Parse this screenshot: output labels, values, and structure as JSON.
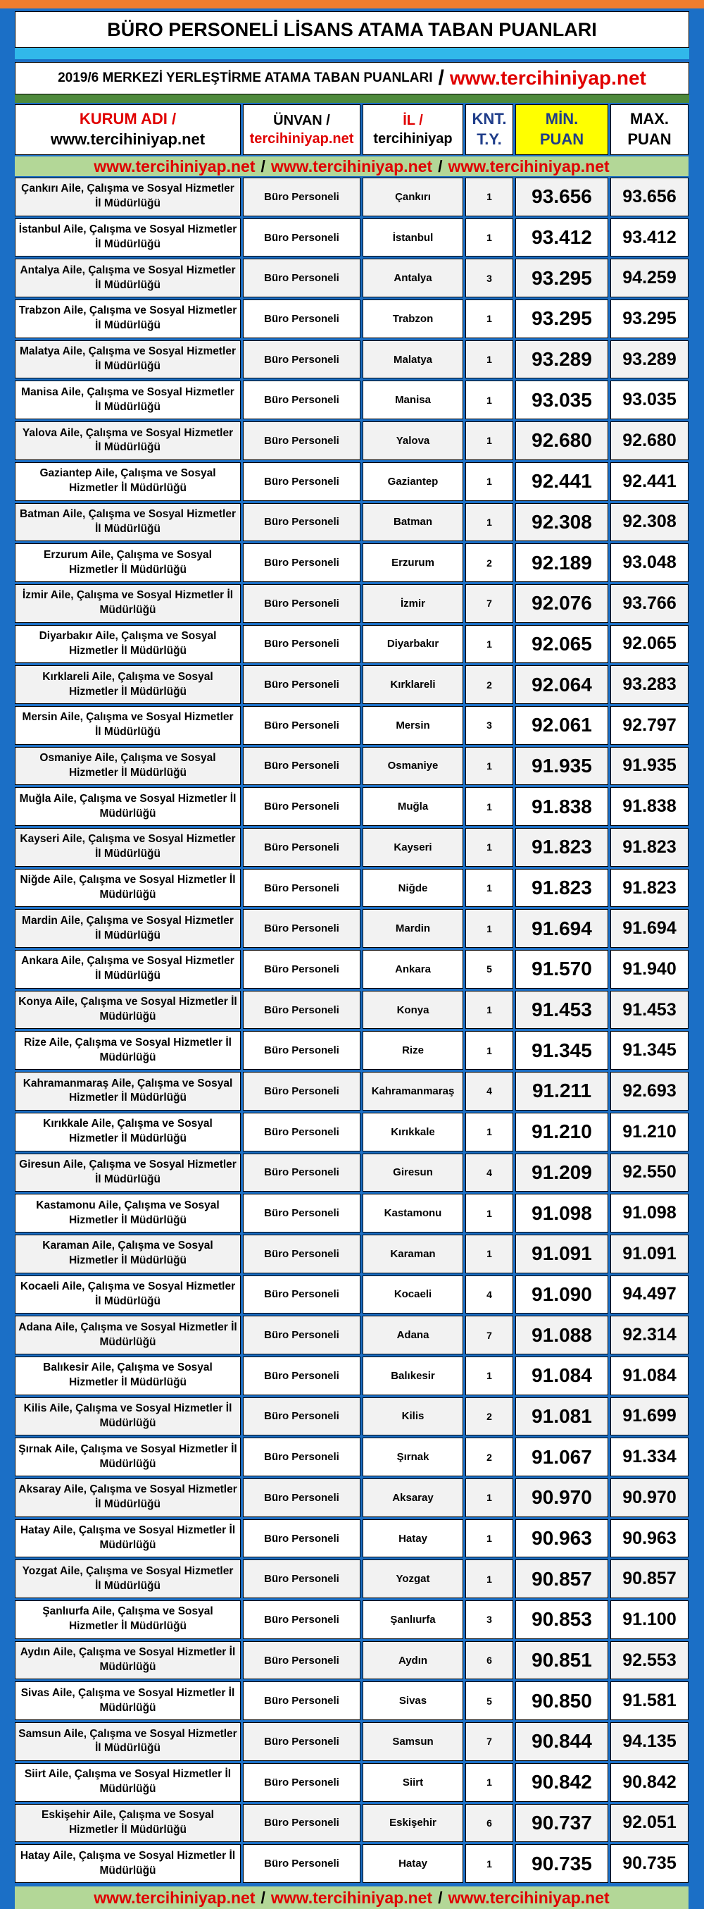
{
  "header": {
    "title": "BÜRO PERSONELİ LİSANS ATAMA TABAN PUANLARI",
    "subtitle": "2019/6 MERKEZİ YERLEŞTİRME ATAMA TABAN PUANLARI",
    "subtitle_sep": "/",
    "subtitle_site": "www.tercihiniyap.net"
  },
  "table": {
    "columns": [
      [
        "KURUM ADI /",
        "www.tercihiniyap.net"
      ],
      [
        "ÜNVAN /",
        "tercihiniyap.net"
      ],
      [
        "İL /",
        "tercihiniyap"
      ],
      [
        "KNT.",
        "T.Y."
      ],
      [
        "MİN.",
        "PUAN"
      ],
      [
        "MAX.",
        "PUAN"
      ]
    ],
    "banner": [
      "www.tercihiniyap.net",
      "/",
      "www.tercihiniyap.net",
      "/",
      "www.tercihiniyap.net"
    ],
    "rows": [
      [
        "Çankırı Aile, Çalışma ve Sosyal Hizmetler İl Müdürlüğü",
        "Büro Personeli",
        "Çankırı",
        "1",
        "93.656",
        "93.656"
      ],
      [
        "İstanbul Aile, Çalışma ve Sosyal Hizmetler İl Müdürlüğü",
        "Büro Personeli",
        "İstanbul",
        "1",
        "93.412",
        "93.412"
      ],
      [
        "Antalya Aile, Çalışma ve Sosyal Hizmetler İl Müdürlüğü",
        "Büro Personeli",
        "Antalya",
        "3",
        "93.295",
        "94.259"
      ],
      [
        "Trabzon Aile, Çalışma ve Sosyal Hizmetler İl Müdürlüğü",
        "Büro Personeli",
        "Trabzon",
        "1",
        "93.295",
        "93.295"
      ],
      [
        "Malatya Aile, Çalışma ve Sosyal Hizmetler İl Müdürlüğü",
        "Büro Personeli",
        "Malatya",
        "1",
        "93.289",
        "93.289"
      ],
      [
        "Manisa Aile, Çalışma ve Sosyal Hizmetler İl Müdürlüğü",
        "Büro Personeli",
        "Manisa",
        "1",
        "93.035",
        "93.035"
      ],
      [
        "Yalova Aile, Çalışma ve Sosyal Hizmetler İl Müdürlüğü",
        "Büro Personeli",
        "Yalova",
        "1",
        "92.680",
        "92.680"
      ],
      [
        "Gaziantep Aile, Çalışma ve Sosyal Hizmetler İl Müdürlüğü",
        "Büro Personeli",
        "Gaziantep",
        "1",
        "92.441",
        "92.441"
      ],
      [
        "Batman Aile, Çalışma ve Sosyal Hizmetler İl Müdürlüğü",
        "Büro Personeli",
        "Batman",
        "1",
        "92.308",
        "92.308"
      ],
      [
        "Erzurum Aile, Çalışma ve Sosyal Hizmetler İl Müdürlüğü",
        "Büro Personeli",
        "Erzurum",
        "2",
        "92.189",
        "93.048"
      ],
      [
        "İzmir Aile, Çalışma ve Sosyal Hizmetler İl Müdürlüğü",
        "Büro Personeli",
        "İzmir",
        "7",
        "92.076",
        "93.766"
      ],
      [
        "Diyarbakır Aile, Çalışma ve Sosyal Hizmetler İl Müdürlüğü",
        "Büro Personeli",
        "Diyarbakır",
        "1",
        "92.065",
        "92.065"
      ],
      [
        "Kırklareli Aile, Çalışma ve Sosyal Hizmetler İl Müdürlüğü",
        "Büro Personeli",
        "Kırklareli",
        "2",
        "92.064",
        "93.283"
      ],
      [
        "Mersin Aile, Çalışma ve Sosyal Hizmetler İl Müdürlüğü",
        "Büro Personeli",
        "Mersin",
        "3",
        "92.061",
        "92.797"
      ],
      [
        "Osmaniye Aile, Çalışma ve Sosyal Hizmetler İl Müdürlüğü",
        "Büro Personeli",
        "Osmaniye",
        "1",
        "91.935",
        "91.935"
      ],
      [
        "Muğla Aile, Çalışma ve Sosyal Hizmetler İl Müdürlüğü",
        "Büro Personeli",
        "Muğla",
        "1",
        "91.838",
        "91.838"
      ],
      [
        "Kayseri Aile, Çalışma ve Sosyal Hizmetler İl Müdürlüğü",
        "Büro Personeli",
        "Kayseri",
        "1",
        "91.823",
        "91.823"
      ],
      [
        "Niğde Aile, Çalışma ve Sosyal Hizmetler İl Müdürlüğü",
        "Büro Personeli",
        "Niğde",
        "1",
        "91.823",
        "91.823"
      ],
      [
        "Mardin Aile, Çalışma ve Sosyal Hizmetler İl Müdürlüğü",
        "Büro Personeli",
        "Mardin",
        "1",
        "91.694",
        "91.694"
      ],
      [
        "Ankara Aile, Çalışma ve Sosyal Hizmetler İl Müdürlüğü",
        "Büro Personeli",
        "Ankara",
        "5",
        "91.570",
        "91.940"
      ],
      [
        "Konya Aile, Çalışma ve Sosyal Hizmetler İl Müdürlüğü",
        "Büro Personeli",
        "Konya",
        "1",
        "91.453",
        "91.453"
      ],
      [
        "Rize Aile, Çalışma ve Sosyal Hizmetler İl Müdürlüğü",
        "Büro Personeli",
        "Rize",
        "1",
        "91.345",
        "91.345"
      ],
      [
        "Kahramanmaraş Aile, Çalışma ve Sosyal Hizmetler İl Müdürlüğü",
        "Büro Personeli",
        "Kahramanmaraş",
        "4",
        "91.211",
        "92.693"
      ],
      [
        "Kırıkkale Aile, Çalışma ve Sosyal Hizmetler İl Müdürlüğü",
        "Büro Personeli",
        "Kırıkkale",
        "1",
        "91.210",
        "91.210"
      ],
      [
        "Giresun Aile, Çalışma ve Sosyal Hizmetler İl Müdürlüğü",
        "Büro Personeli",
        "Giresun",
        "4",
        "91.209",
        "92.550"
      ],
      [
        "Kastamonu Aile, Çalışma ve Sosyal Hizmetler İl Müdürlüğü",
        "Büro Personeli",
        "Kastamonu",
        "1",
        "91.098",
        "91.098"
      ],
      [
        "Karaman Aile, Çalışma ve Sosyal Hizmetler İl Müdürlüğü",
        "Büro Personeli",
        "Karaman",
        "1",
        "91.091",
        "91.091"
      ],
      [
        "Kocaeli Aile, Çalışma ve Sosyal Hizmetler İl Müdürlüğü",
        "Büro Personeli",
        "Kocaeli",
        "4",
        "91.090",
        "94.497"
      ],
      [
        "Adana Aile, Çalışma ve Sosyal Hizmetler İl Müdürlüğü",
        "Büro Personeli",
        "Adana",
        "7",
        "91.088",
        "92.314"
      ],
      [
        "Balıkesir Aile, Çalışma ve Sosyal Hizmetler İl Müdürlüğü",
        "Büro Personeli",
        "Balıkesir",
        "1",
        "91.084",
        "91.084"
      ],
      [
        "Kilis Aile, Çalışma ve Sosyal Hizmetler İl Müdürlüğü",
        "Büro Personeli",
        "Kilis",
        "2",
        "91.081",
        "91.699"
      ],
      [
        "Şırnak Aile, Çalışma ve Sosyal Hizmetler İl Müdürlüğü",
        "Büro Personeli",
        "Şırnak",
        "2",
        "91.067",
        "91.334"
      ],
      [
        "Aksaray Aile, Çalışma ve Sosyal Hizmetler İl Müdürlüğü",
        "Büro Personeli",
        "Aksaray",
        "1",
        "90.970",
        "90.970"
      ],
      [
        "Hatay Aile, Çalışma ve Sosyal Hizmetler İl Müdürlüğü",
        "Büro Personeli",
        "Hatay",
        "1",
        "90.963",
        "90.963"
      ],
      [
        "Yozgat Aile, Çalışma ve Sosyal Hizmetler İl Müdürlüğü",
        "Büro Personeli",
        "Yozgat",
        "1",
        "90.857",
        "90.857"
      ],
      [
        "Şanlıurfa Aile, Çalışma ve Sosyal Hizmetler İl Müdürlüğü",
        "Büro Personeli",
        "Şanlıurfa",
        "3",
        "90.853",
        "91.100"
      ],
      [
        "Aydın Aile, Çalışma ve Sosyal Hizmetler İl Müdürlüğü",
        "Büro Personeli",
        "Aydın",
        "6",
        "90.851",
        "92.553"
      ],
      [
        "Sivas Aile, Çalışma ve Sosyal Hizmetler İl Müdürlüğü",
        "Büro Personeli",
        "Sivas",
        "5",
        "90.850",
        "91.581"
      ],
      [
        "Samsun Aile, Çalışma ve Sosyal Hizmetler İl Müdürlüğü",
        "Büro Personeli",
        "Samsun",
        "7",
        "90.844",
        "94.135"
      ],
      [
        "Siirt Aile, Çalışma ve Sosyal Hizmetler İl Müdürlüğü",
        "Büro Personeli",
        "Siirt",
        "1",
        "90.842",
        "90.842"
      ],
      [
        "Eskişehir Aile, Çalışma ve Sosyal Hizmetler İl Müdürlüğü",
        "Büro Personeli",
        "Eskişehir",
        "6",
        "90.737",
        "92.051"
      ],
      [
        "Hatay Aile, Çalışma ve Sosyal Hizmetler İl Müdürlüğü",
        "Büro Personeli",
        "Hatay",
        "1",
        "90.735",
        "90.735"
      ]
    ]
  }
}
